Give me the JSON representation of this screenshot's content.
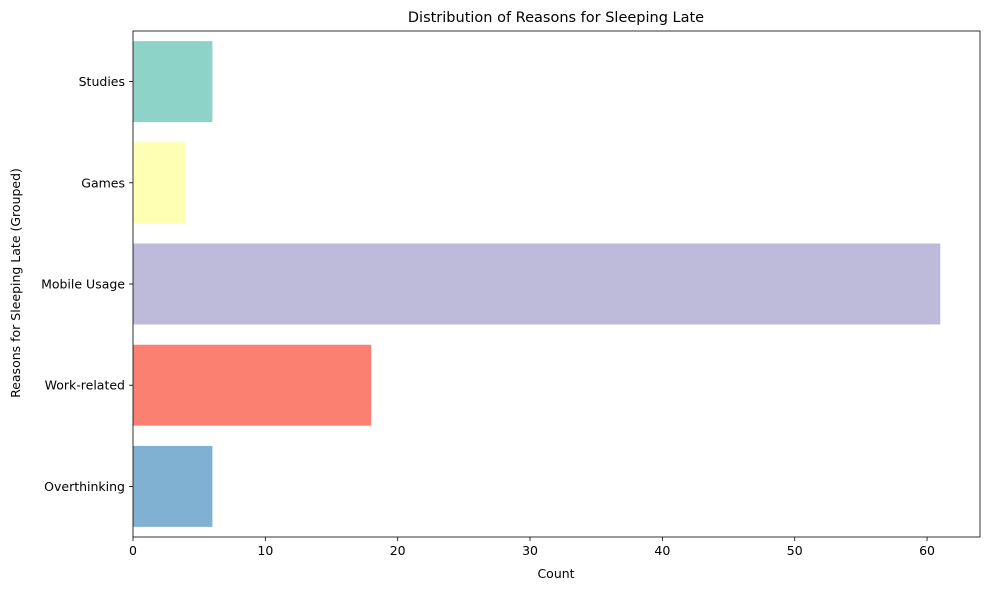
{
  "chart_data": {
    "type": "bar",
    "orientation": "horizontal",
    "title": "Distribution of Reasons for Sleeping Late",
    "xlabel": "Count",
    "ylabel": "Reasons for Sleeping Late (Grouped)",
    "categories": [
      "Studies",
      "Games",
      "Mobile Usage",
      "Work-related",
      "Overthinking"
    ],
    "values": [
      6,
      4,
      61,
      18,
      6
    ],
    "colors": [
      "#8dd3c7",
      "#ffffb3",
      "#bebada",
      "#fb8072",
      "#80b1d3"
    ],
    "xlim": [
      0,
      64
    ],
    "xticks": [
      0,
      10,
      20,
      30,
      40,
      50,
      60
    ],
    "grid": false,
    "legend": "none"
  }
}
